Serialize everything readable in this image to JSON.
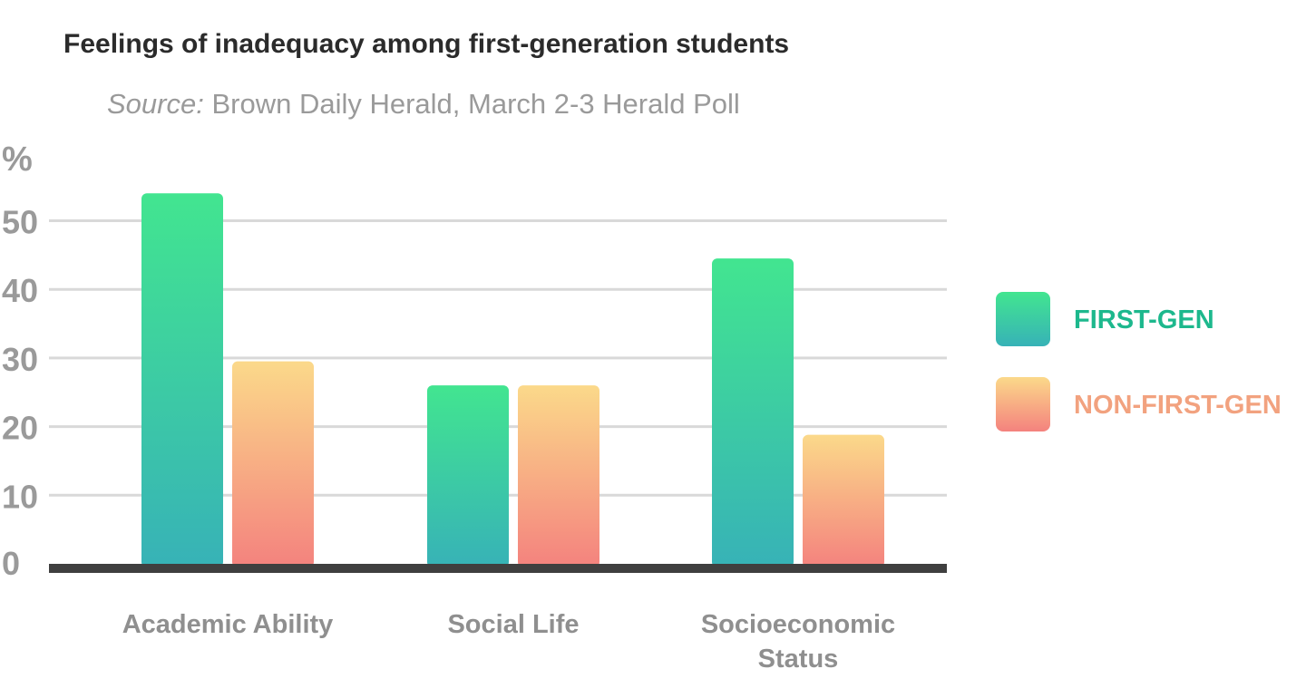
{
  "chart_data": {
    "type": "bar",
    "title": "Feelings of inadequacy among first-generation students",
    "subtitle_source_label": "Source:",
    "subtitle_source_text": " Brown Daily Herald, March 2-3 Herald Poll",
    "ylabel": "%",
    "xlabel": "",
    "ylim": [
      0,
      55
    ],
    "yticks": [
      0,
      10,
      20,
      30,
      40,
      50
    ],
    "grid": true,
    "legend_position": "right",
    "categories": [
      "Academic Ability",
      "Social Life",
      "Socioeconomic Status"
    ],
    "category_display_lines": [
      [
        "Academic Ability"
      ],
      [
        "Social Life"
      ],
      [
        "Socioeconomic",
        "Status"
      ]
    ],
    "series": [
      {
        "name": "FIRST-GEN",
        "values": [
          54,
          26,
          44.5
        ],
        "color_top": "#42e590",
        "color_bottom": "#37b2b7",
        "legend_text_color": "#1db88d"
      },
      {
        "name": "NON-FIRST-GEN",
        "values": [
          29.5,
          26,
          18.8
        ],
        "color_top": "#fbd98a",
        "color_bottom": "#f4827e",
        "legend_text_color": "#f2a27f"
      }
    ],
    "axis_color": "#3f3f3f",
    "grid_color": "#d9d9d9"
  }
}
